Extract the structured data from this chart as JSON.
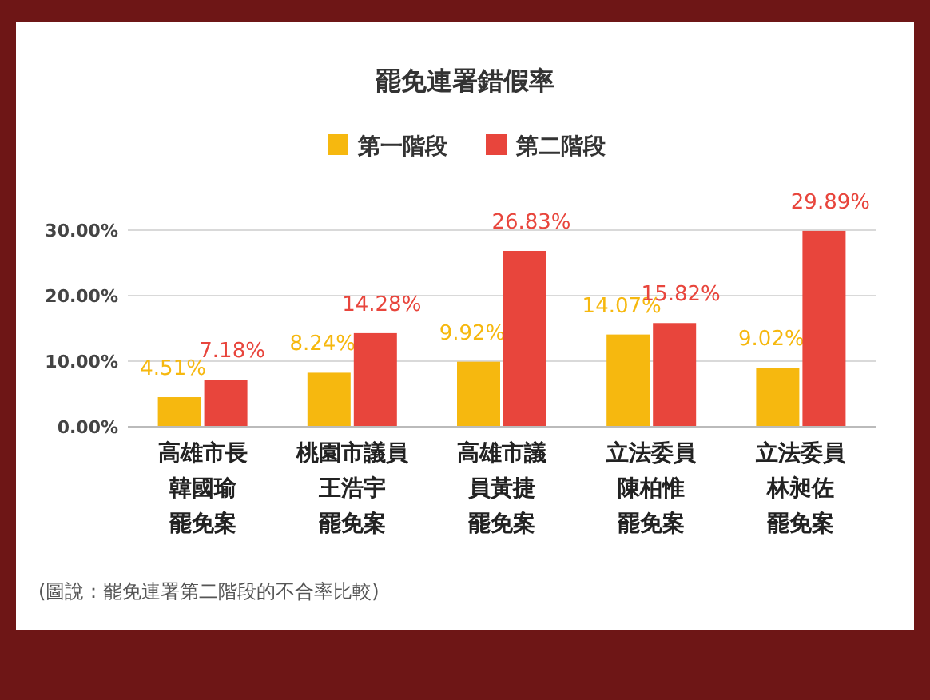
{
  "chart_data": {
    "type": "bar",
    "title": "罷免連署錯假率",
    "categories": [
      "高雄市長韓國瑜罷免案",
      "桃園市議員王浩宇罷免案",
      "高雄市議員黃捷罷免案",
      "立法委員陳柏惟罷免案",
      "立法委員林昶佐罷免案"
    ],
    "series": [
      {
        "name": "第一階段",
        "color": "#f6b80f",
        "values": [
          4.51,
          8.24,
          9.92,
          14.07,
          9.02
        ],
        "value_labels": [
          "4.51%",
          "8.24%",
          "9.92%",
          "14.07%",
          "9.02%"
        ]
      },
      {
        "name": "第二階段",
        "color": "#e8453c",
        "values": [
          7.18,
          14.28,
          26.83,
          15.82,
          29.89
        ],
        "value_labels": [
          "7.18%",
          "14.28%",
          "26.83%",
          "15.82%",
          "29.89%"
        ]
      }
    ],
    "ylim": [
      0,
      30
    ],
    "yticks": [
      {
        "value": 0,
        "label": "0.00%"
      },
      {
        "value": 10,
        "label": "10.00%"
      },
      {
        "value": 20,
        "label": "20.00%"
      },
      {
        "value": 30,
        "label": "30.00%"
      }
    ],
    "grid": "y",
    "legend": "top",
    "annotations": [
      "(圖說：罷免連署第二階段的不合率比較)"
    ]
  }
}
